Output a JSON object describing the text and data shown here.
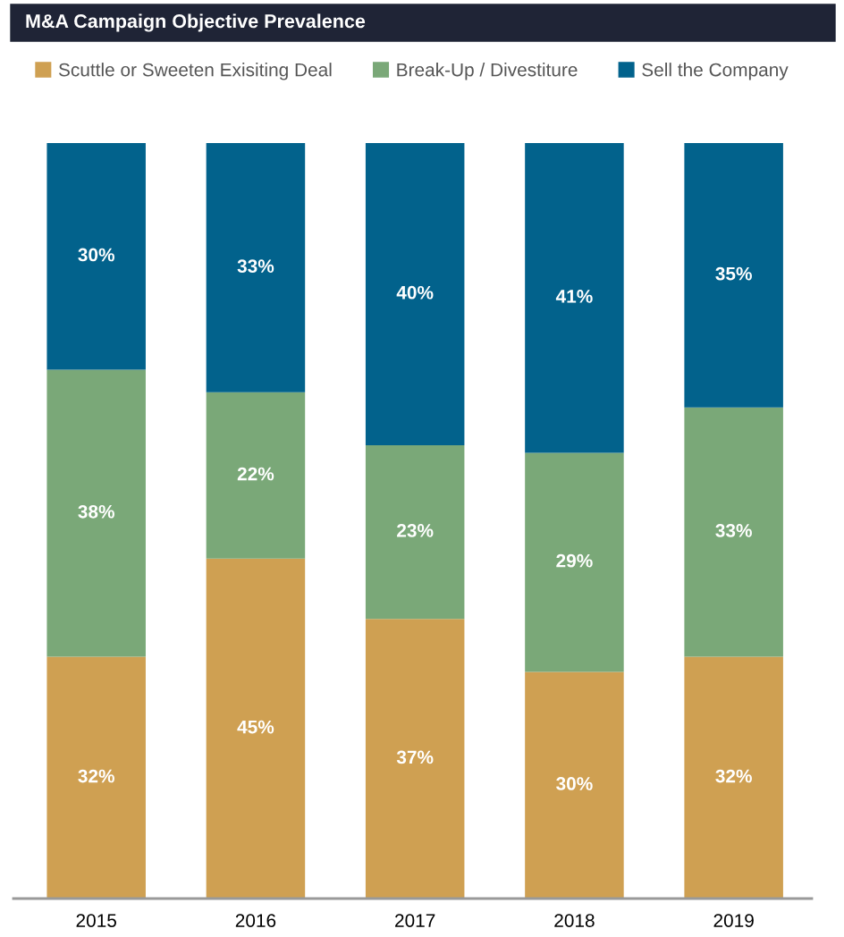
{
  "chart_data": {
    "type": "bar",
    "title": "M&A Campaign Objective Prevalence",
    "categories": [
      "2015",
      "2016",
      "2017",
      "2018",
      "2019"
    ],
    "stacked": true,
    "legend": "top left",
    "grid": false,
    "series": [
      {
        "name": "Scuttle or Sweeten Exisiting Deal",
        "color": "#cfa052",
        "values": [
          32,
          45,
          37,
          30,
          32
        ],
        "value_labels": [
          "32%",
          "45%",
          "37%",
          "30%",
          "32%"
        ]
      },
      {
        "name": "Break-Up / Divestiture",
        "color": "#7aa878",
        "values": [
          38,
          22,
          23,
          29,
          33
        ],
        "value_labels": [
          "38%",
          "22%",
          "23%",
          "29%",
          "33%"
        ]
      },
      {
        "name": "Sell the Company",
        "color": "#02628c",
        "values": [
          30,
          33,
          40,
          41,
          35
        ],
        "value_labels": [
          "30%",
          "33%",
          "40%",
          "41%",
          "35%"
        ]
      }
    ]
  }
}
